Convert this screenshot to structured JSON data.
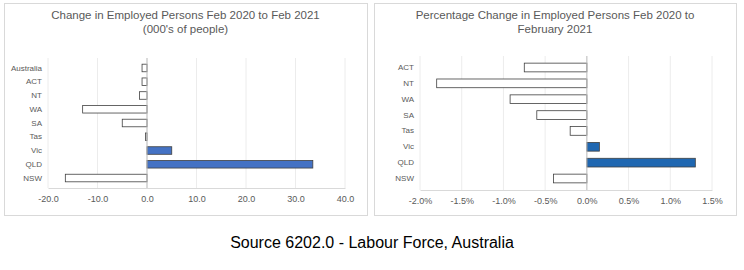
{
  "chart_data": [
    {
      "type": "bar",
      "orientation": "horizontal",
      "title": "Change in Employed Persons Feb 2020 to Feb 2021 (000's of people)",
      "categories": [
        "Australia",
        "ACT",
        "NT",
        "WA",
        "SA",
        "Tas",
        "Vic",
        "QLD",
        "NSW"
      ],
      "values": [
        -1.0,
        -1.0,
        -1.5,
        -13.0,
        -5.0,
        -0.3,
        5.0,
        33.5,
        -16.5
      ],
      "colors": [
        "#ffffff",
        "#ffffff",
        "#ffffff",
        "#ffffff",
        "#ffffff",
        "#ffffff",
        "#4472c4",
        "#4472c4",
        "#ffffff"
      ],
      "xlim": [
        -20,
        40
      ],
      "xticks": [
        {
          "value": -20,
          "label": "-20.0"
        },
        {
          "value": -10,
          "label": "-10.0"
        },
        {
          "value": 0,
          "label": "0.0"
        },
        {
          "value": 10,
          "label": "10.0"
        },
        {
          "value": 20,
          "label": "20.0"
        },
        {
          "value": 30,
          "label": "30.0"
        },
        {
          "value": 40,
          "label": "40.0"
        }
      ],
      "grid": true
    },
    {
      "type": "bar",
      "orientation": "horizontal",
      "title": "Percentage Change in Employed Persons Feb 2020 to February 2021",
      "categories": [
        "ACT",
        "NT",
        "WA",
        "SA",
        "Tas",
        "Vic",
        "QLD",
        "NSW"
      ],
      "values": [
        -0.75,
        -1.8,
        -0.92,
        -0.6,
        -0.2,
        0.15,
        1.3,
        -0.4
      ],
      "colors": [
        "#ffffff",
        "#ffffff",
        "#ffffff",
        "#ffffff",
        "#ffffff",
        "#1f67b1",
        "#1f67b1",
        "#ffffff"
      ],
      "xlim": [
        -2.0,
        1.5
      ],
      "xticks": [
        {
          "value": -2.0,
          "label": "-2.0%"
        },
        {
          "value": -1.5,
          "label": "-1.5%"
        },
        {
          "value": -1.0,
          "label": "-1.0%"
        },
        {
          "value": -0.5,
          "label": "-0.5%"
        },
        {
          "value": 0,
          "label": "0.0%"
        },
        {
          "value": 0.5,
          "label": "0.5%"
        },
        {
          "value": 1.0,
          "label": "1.0%"
        },
        {
          "value": 1.5,
          "label": "1.5%"
        }
      ],
      "grid": true
    }
  ],
  "caption": "Source 6202.0 - Labour Force, Australia"
}
